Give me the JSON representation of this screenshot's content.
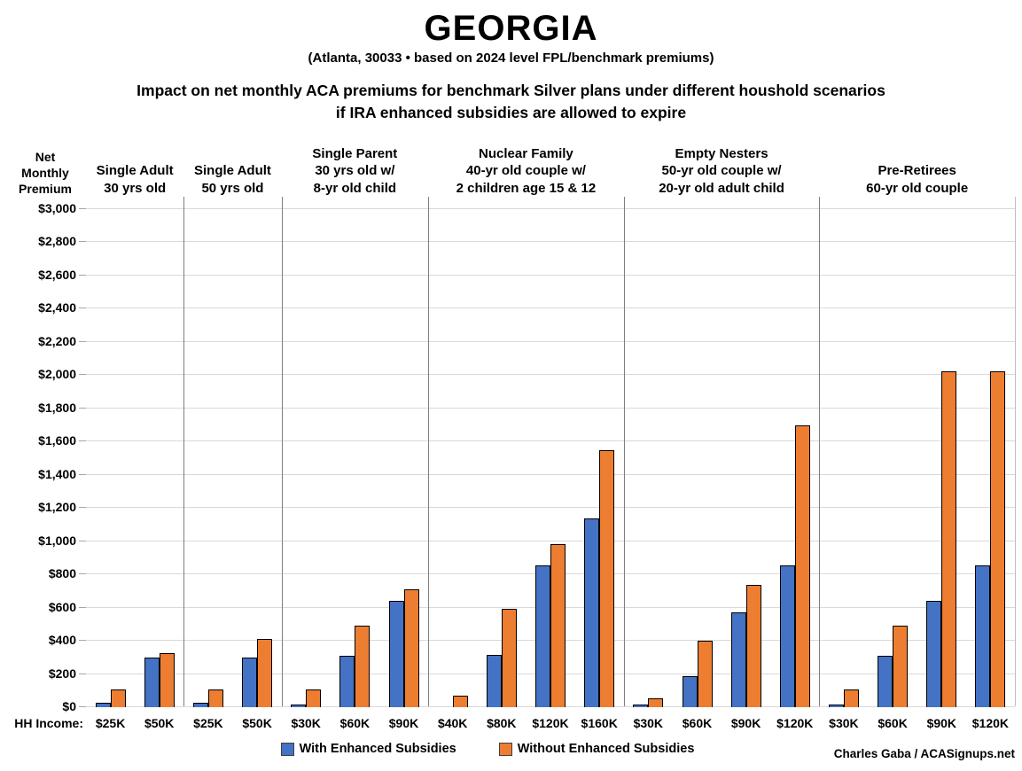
{
  "credit": "Charles Gaba / ACASignups.net",
  "chart_data": {
    "type": "bar",
    "title": "GEORGIA",
    "subtitle": "(Atlanta, 30033 • based on 2024 level FPL/benchmark premiums)",
    "heading_line1": "Impact on net monthly ACA premiums for benchmark Silver plans under different houshold scenarios",
    "heading_line2": "if IRA enhanced subsidies are allowed to expire",
    "ylabel_lines": [
      "Net",
      "Monthly",
      "Premium"
    ],
    "xlabel": "HH Income:",
    "ylim": [
      0,
      3000
    ],
    "ytick_step": 200,
    "ytick_prefix": "$",
    "grid": true,
    "legend_position": "bottom",
    "series": [
      {
        "name": "With Enhanced Subsidies",
        "color": "#4472C4"
      },
      {
        "name": "Without Enhanced Subsidies",
        "color": "#ED7D31"
      }
    ],
    "groups": [
      {
        "header": [
          "Single Adult",
          "30 yrs old"
        ],
        "categories": [
          "$25K",
          "$50K"
        ],
        "series_values": [
          [
            21,
            295
          ],
          [
            103,
            322
          ]
        ]
      },
      {
        "header": [
          "Single Adult",
          "50 yrs old"
        ],
        "categories": [
          "$25K",
          "$50K"
        ],
        "series_values": [
          [
            21,
            295
          ],
          [
            103,
            407
          ]
        ]
      },
      {
        "header": [
          "Single Parent",
          "30 yrs old w/",
          "8-yr old child"
        ],
        "categories": [
          "$30K",
          "$60K",
          "$90K"
        ],
        "series_values": [
          [
            2,
            305,
            635
          ],
          [
            103,
            486,
            707
          ]
        ]
      },
      {
        "header": [
          "Nuclear Family",
          "40-yr old couple w/",
          "2 children age 15 & 12"
        ],
        "categories": [
          "$40K",
          "$80K",
          "$120K",
          "$160K"
        ],
        "series_values": [
          [
            0,
            310,
            848,
            1130
          ],
          [
            62,
            587,
            975,
            1545
          ]
        ]
      },
      {
        "header": [
          "Empty Nesters",
          "50-yr old couple w/",
          "20-yr old adult child"
        ],
        "categories": [
          "$30K",
          "$60K",
          "$90K",
          "$120K"
        ],
        "series_values": [
          [
            2,
            183,
            565,
            848
          ],
          [
            48,
            394,
            730,
            1690
          ]
        ]
      },
      {
        "header": [
          "Pre-Retirees",
          "60-yr old couple"
        ],
        "categories": [
          "$30K",
          "$60K",
          "$90K",
          "$120K"
        ],
        "series_values": [
          [
            2,
            302,
            635,
            848
          ],
          [
            100,
            485,
            2020,
            2020
          ]
        ]
      }
    ]
  }
}
